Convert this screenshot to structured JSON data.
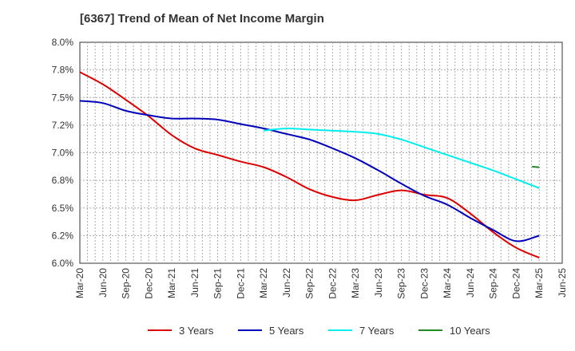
{
  "title": "[6367]  Trend of Mean of Net Income Margin",
  "chart_data": {
    "type": "line",
    "title": "[6367]  Trend of Mean of Net Income Margin",
    "x_labels": [
      "Mar-20",
      "Jun-20",
      "Sep-20",
      "Dec-20",
      "Mar-21",
      "Jun-21",
      "Sep-21",
      "Dec-21",
      "Mar-22",
      "Jun-22",
      "Sep-22",
      "Dec-22",
      "Mar-23",
      "Jun-23",
      "Sep-23",
      "Dec-23",
      "Mar-24",
      "Jun-24",
      "Sep-24",
      "Dec-24",
      "Mar-25",
      "Jun-25"
    ],
    "y_ticks": [
      "6.0%",
      "6.2%",
      "6.5%",
      "6.8%",
      "7.0%",
      "7.2%",
      "7.5%",
      "7.8%",
      "8.0%"
    ],
    "y_tick_values": [
      6.0,
      6.25,
      6.5,
      6.75,
      7.0,
      7.25,
      7.5,
      7.75,
      8.0
    ],
    "ylim": [
      6.0,
      8.0
    ],
    "grid": true,
    "legend_position": "bottom",
    "series": [
      {
        "name": "3 Years",
        "color": "#dd0000",
        "values": [
          7.73,
          7.62,
          7.48,
          7.33,
          7.16,
          7.04,
          6.98,
          6.92,
          6.87,
          6.78,
          6.67,
          6.6,
          6.57,
          6.62,
          6.66,
          6.62,
          6.59,
          6.45,
          6.28,
          6.14,
          6.05,
          null
        ]
      },
      {
        "name": "5 Years",
        "color": "#0000bb",
        "values": [
          7.47,
          7.45,
          7.38,
          7.34,
          7.31,
          7.31,
          7.3,
          7.26,
          7.22,
          7.17,
          7.12,
          7.04,
          6.95,
          6.84,
          6.72,
          6.61,
          6.53,
          6.41,
          6.3,
          6.2,
          6.25,
          null
        ]
      },
      {
        "name": "7 Years",
        "color": "#00eeee",
        "values": [
          null,
          null,
          null,
          null,
          null,
          null,
          null,
          null,
          7.2,
          7.22,
          7.21,
          7.2,
          7.19,
          7.17,
          7.12,
          7.05,
          6.98,
          6.91,
          6.84,
          6.76,
          6.68,
          null
        ]
      },
      {
        "name": "10 Years",
        "color": "#228822",
        "values": [
          null,
          null,
          null,
          null,
          null,
          null,
          null,
          null,
          null,
          null,
          null,
          null,
          null,
          null,
          null,
          null,
          null,
          null,
          null,
          null,
          6.87,
          null
        ]
      }
    ]
  }
}
